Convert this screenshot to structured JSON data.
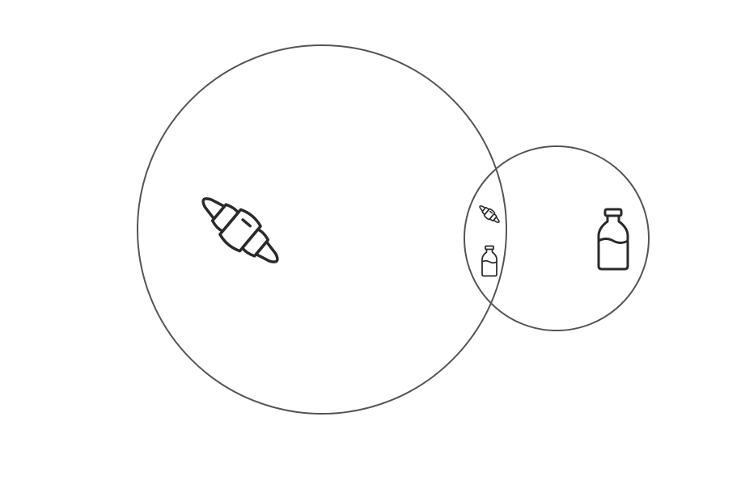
{
  "diagram": {
    "type": "venn",
    "stroke_color": "#555555",
    "icon_color": "#2a2a2a",
    "sets": [
      {
        "id": "left",
        "icon": "croissant-icon"
      },
      {
        "id": "right",
        "icon": "bottle-icon"
      }
    ],
    "intersection": {
      "icons": [
        "croissant-icon",
        "bottle-icon"
      ]
    }
  }
}
